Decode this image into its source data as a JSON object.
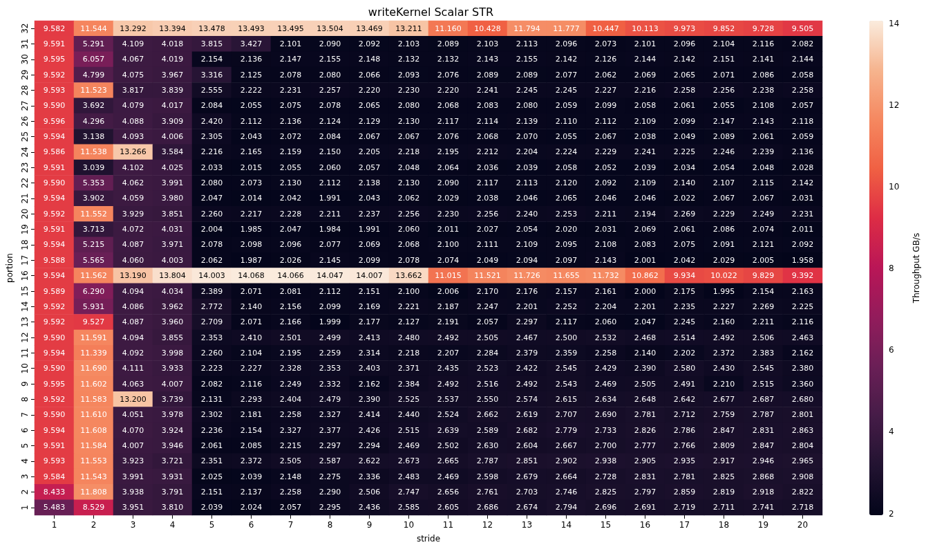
{
  "chart_data": {
    "type": "heatmap",
    "title": "writeKernel Scalar STR",
    "xlabel": "stride",
    "ylabel": "portion",
    "clabel": "Throughput GB/s",
    "categories": [
      "1",
      "2",
      "3",
      "4",
      "5",
      "6",
      "7",
      "8",
      "9",
      "10",
      "11",
      "12",
      "13",
      "14",
      "15",
      "16",
      "17",
      "18",
      "19",
      "20"
    ],
    "y_categories": [
      "32",
      "31",
      "30",
      "29",
      "28",
      "27",
      "26",
      "25",
      "24",
      "23",
      "22",
      "21",
      "20",
      "19",
      "18",
      "17",
      "16",
      "15",
      "14",
      "13",
      "12",
      "11",
      "10",
      "9",
      "8",
      "7",
      "6",
      "5",
      "4",
      "3",
      "2",
      "1"
    ],
    "cells": [
      [
        9.582,
        11.544,
        13.292,
        13.394,
        13.478,
        13.493,
        13.495,
        13.504,
        13.469,
        13.211,
        11.16,
        10.428,
        11.794,
        11.777,
        10.447,
        10.113,
        9.973,
        9.852,
        9.728,
        9.505
      ],
      [
        9.591,
        5.291,
        4.109,
        4.018,
        3.815,
        3.427,
        2.101,
        2.09,
        2.092,
        2.103,
        2.089,
        2.103,
        2.113,
        2.096,
        2.073,
        2.101,
        2.096,
        2.104,
        2.116,
        2.082
      ],
      [
        9.595,
        6.057,
        4.067,
        4.019,
        2.154,
        2.136,
        2.147,
        2.155,
        2.148,
        2.132,
        2.132,
        2.143,
        2.155,
        2.142,
        2.126,
        2.144,
        2.142,
        2.151,
        2.141,
        2.144
      ],
      [
        9.592,
        4.799,
        4.075,
        3.967,
        3.316,
        2.125,
        2.078,
        2.08,
        2.066,
        2.093,
        2.076,
        2.089,
        2.089,
        2.077,
        2.062,
        2.069,
        2.065,
        2.071,
        2.086,
        2.058
      ],
      [
        9.593,
        11.523,
        3.817,
        3.839,
        2.555,
        2.222,
        2.231,
        2.257,
        2.22,
        2.23,
        2.22,
        2.241,
        2.245,
        2.245,
        2.227,
        2.216,
        2.258,
        2.256,
        2.238,
        2.258
      ],
      [
        9.59,
        3.692,
        4.079,
        4.017,
        2.084,
        2.055,
        2.075,
        2.078,
        2.065,
        2.08,
        2.068,
        2.083,
        2.08,
        2.059,
        2.099,
        2.058,
        2.061,
        2.055,
        2.108,
        2.057
      ],
      [
        9.596,
        4.296,
        4.088,
        3.909,
        2.42,
        2.112,
        2.136,
        2.124,
        2.129,
        2.13,
        2.117,
        2.114,
        2.139,
        2.11,
        2.112,
        2.109,
        2.099,
        2.147,
        2.143,
        2.118
      ],
      [
        9.594,
        3.138,
        4.093,
        4.006,
        2.305,
        2.043,
        2.072,
        2.084,
        2.067,
        2.067,
        2.076,
        2.068,
        2.07,
        2.055,
        2.067,
        2.038,
        2.049,
        2.089,
        2.061,
        2.059
      ],
      [
        9.586,
        11.538,
        13.266,
        3.584,
        2.216,
        2.165,
        2.159,
        2.15,
        2.205,
        2.218,
        2.195,
        2.212,
        2.204,
        2.224,
        2.229,
        2.241,
        2.225,
        2.246,
        2.239,
        2.136
      ],
      [
        9.591,
        3.039,
        4.102,
        4.025,
        2.033,
        2.015,
        2.055,
        2.06,
        2.057,
        2.048,
        2.064,
        2.036,
        2.039,
        2.058,
        2.052,
        2.039,
        2.034,
        2.054,
        2.048,
        2.028
      ],
      [
        9.59,
        5.353,
        4.062,
        3.991,
        2.08,
        2.073,
        2.13,
        2.112,
        2.138,
        2.13,
        2.09,
        2.117,
        2.113,
        2.12,
        2.092,
        2.109,
        2.14,
        2.107,
        2.115,
        2.142
      ],
      [
        9.594,
        3.902,
        4.059,
        3.98,
        2.047,
        2.014,
        2.042,
        1.991,
        2.043,
        2.062,
        2.029,
        2.038,
        2.046,
        2.065,
        2.046,
        2.046,
        2.022,
        2.067,
        2.067,
        2.031
      ],
      [
        9.592,
        11.552,
        3.929,
        3.851,
        2.26,
        2.217,
        2.228,
        2.211,
        2.237,
        2.256,
        2.23,
        2.256,
        2.24,
        2.253,
        2.211,
        2.194,
        2.269,
        2.229,
        2.249,
        2.231
      ],
      [
        9.591,
        3.713,
        4.072,
        4.031,
        2.004,
        1.985,
        2.047,
        1.984,
        1.991,
        2.06,
        2.011,
        2.027,
        2.054,
        2.02,
        2.031,
        2.069,
        2.061,
        2.086,
        2.074,
        2.011
      ],
      [
        9.594,
        5.215,
        4.087,
        3.971,
        2.078,
        2.098,
        2.096,
        2.077,
        2.069,
        2.068,
        2.1,
        2.111,
        2.109,
        2.095,
        2.108,
        2.083,
        2.075,
        2.091,
        2.121,
        2.092
      ],
      [
        9.588,
        5.565,
        4.06,
        4.003,
        2.062,
        1.987,
        2.026,
        2.145,
        2.099,
        2.078,
        2.074,
        2.049,
        2.094,
        2.097,
        2.143,
        2.001,
        2.042,
        2.029,
        2.005,
        1.958
      ],
      [
        9.594,
        11.562,
        13.19,
        13.804,
        14.003,
        14.068,
        14.066,
        14.047,
        14.007,
        13.662,
        11.015,
        11.521,
        11.726,
        11.655,
        11.732,
        10.862,
        9.934,
        10.022,
        9.829,
        9.392
      ],
      [
        9.589,
        6.29,
        4.094,
        4.034,
        2.389,
        2.071,
        2.081,
        2.112,
        2.151,
        2.1,
        2.006,
        2.17,
        2.176,
        2.157,
        2.161,
        2.0,
        2.175,
        1.995,
        2.154,
        2.163
      ],
      [
        9.592,
        5.931,
        4.086,
        3.962,
        2.772,
        2.14,
        2.156,
        2.099,
        2.169,
        2.221,
        2.187,
        2.247,
        2.201,
        2.252,
        2.204,
        2.201,
        2.235,
        2.227,
        2.269,
        2.225
      ],
      [
        9.592,
        9.527,
        4.087,
        3.96,
        2.709,
        2.071,
        2.166,
        1.999,
        2.177,
        2.127,
        2.191,
        2.057,
        2.297,
        2.117,
        2.06,
        2.047,
        2.245,
        2.16,
        2.211,
        2.116
      ],
      [
        9.59,
        11.591,
        4.094,
        3.855,
        2.353,
        2.41,
        2.501,
        2.499,
        2.413,
        2.48,
        2.492,
        2.505,
        2.467,
        2.5,
        2.532,
        2.468,
        2.514,
        2.492,
        2.506,
        2.463
      ],
      [
        9.594,
        11.339,
        4.092,
        3.998,
        2.26,
        2.104,
        2.195,
        2.259,
        2.314,
        2.218,
        2.207,
        2.284,
        2.379,
        2.359,
        2.258,
        2.14,
        2.202,
        2.372,
        2.383,
        2.162
      ],
      [
        9.59,
        11.69,
        4.111,
        3.933,
        2.223,
        2.227,
        2.328,
        2.353,
        2.403,
        2.371,
        2.435,
        2.523,
        2.422,
        2.545,
        2.429,
        2.39,
        2.58,
        2.43,
        2.545,
        2.38
      ],
      [
        9.595,
        11.602,
        4.063,
        4.007,
        2.082,
        2.116,
        2.249,
        2.332,
        2.162,
        2.384,
        2.492,
        2.516,
        2.492,
        2.543,
        2.469,
        2.505,
        2.491,
        2.21,
        2.515,
        2.36
      ],
      [
        9.592,
        11.583,
        13.2,
        3.739,
        2.131,
        2.293,
        2.404,
        2.479,
        2.39,
        2.525,
        2.537,
        2.55,
        2.574,
        2.615,
        2.634,
        2.648,
        2.642,
        2.677,
        2.687,
        2.68
      ],
      [
        9.59,
        11.61,
        4.051,
        3.978,
        2.302,
        2.181,
        2.258,
        2.327,
        2.414,
        2.44,
        2.524,
        2.662,
        2.619,
        2.707,
        2.69,
        2.781,
        2.712,
        2.759,
        2.787,
        2.801
      ],
      [
        9.594,
        11.608,
        4.07,
        3.924,
        2.236,
        2.154,
        2.327,
        2.377,
        2.426,
        2.515,
        2.639,
        2.589,
        2.682,
        2.779,
        2.733,
        2.826,
        2.786,
        2.847,
        2.831,
        2.863
      ],
      [
        9.591,
        11.584,
        4.007,
        3.946,
        2.061,
        2.085,
        2.215,
        2.297,
        2.294,
        2.469,
        2.502,
        2.63,
        2.604,
        2.667,
        2.7,
        2.777,
        2.766,
        2.809,
        2.847,
        2.804
      ],
      [
        9.593,
        11.553,
        3.923,
        3.721,
        2.351,
        2.372,
        2.505,
        2.587,
        2.622,
        2.673,
        2.665,
        2.787,
        2.851,
        2.902,
        2.938,
        2.905,
        2.935,
        2.917,
        2.946,
        2.965
      ],
      [
        9.584,
        11.543,
        3.991,
        3.931,
        2.025,
        2.039,
        2.148,
        2.275,
        2.336,
        2.483,
        2.469,
        2.598,
        2.679,
        2.664,
        2.728,
        2.831,
        2.781,
        2.825,
        2.868,
        2.908
      ],
      [
        8.433,
        11.808,
        3.938,
        3.791,
        2.151,
        2.137,
        2.258,
        2.29,
        2.506,
        2.747,
        2.656,
        2.761,
        2.703,
        2.746,
        2.825,
        2.797,
        2.859,
        2.819,
        2.918,
        2.822
      ],
      [
        5.483,
        8.529,
        3.951,
        3.81,
        2.039,
        2.024,
        2.057,
        2.295,
        2.436,
        2.585,
        2.605,
        2.686,
        2.674,
        2.794,
        2.696,
        2.691,
        2.719,
        2.711,
        2.741,
        2.718
      ]
    ],
    "cell_labels": [
      [
        "9.582",
        "11.544",
        "13.292",
        "13.394",
        "13.478",
        "13.493",
        "13.495",
        "13.504",
        "13.469",
        "13.211",
        "11.160",
        "10.428",
        "11.794",
        "11.777",
        "10.447",
        "10.113",
        "9.973",
        "9.852",
        "9.728",
        "9.505"
      ],
      [
        "9.591",
        "5.291",
        "4.109",
        "4.018",
        "3.815",
        "3.427",
        "2.101",
        "2.090",
        "2.092",
        "2.103",
        "2.089",
        "2.103",
        "2.113",
        "2.096",
        "2.073",
        "2.101",
        "2.096",
        "2.104",
        "2.116",
        "2.082"
      ],
      [
        "9.595",
        "6.057",
        "4.067",
        "4.019",
        "2.154",
        "2.136",
        "2.147",
        "2.155",
        "2.148",
        "2.132",
        "2.132",
        "2.143",
        "2.155",
        "2.142",
        "2.126",
        "2.144",
        "2.142",
        "2.151",
        "2.141",
        "2.144"
      ],
      [
        "9.592",
        "4.799",
        "4.075",
        "3.967",
        "3.316",
        "2.125",
        "2.078",
        "2.080",
        "2.066",
        "2.093",
        "2.076",
        "2.089",
        "2.089",
        "2.077",
        "2.062",
        "2.069",
        "2.065",
        "2.071",
        "2.086",
        "2.058"
      ],
      [
        "9.593",
        "11.523",
        "3.817",
        "3.839",
        "2.555",
        "2.222",
        "2.231",
        "2.257",
        "2.220",
        "2.230",
        "2.220",
        "2.241",
        "2.245",
        "2.245",
        "2.227",
        "2.216",
        "2.258",
        "2.256",
        "2.238",
        "2.258"
      ],
      [
        "9.590",
        "3.692",
        "4.079",
        "4.017",
        "2.084",
        "2.055",
        "2.075",
        "2.078",
        "2.065",
        "2.080",
        "2.068",
        "2.083",
        "2.080",
        "2.059",
        "2.099",
        "2.058",
        "2.061",
        "2.055",
        "2.108",
        "2.057"
      ],
      [
        "9.596",
        "4.296",
        "4.088",
        "3.909",
        "2.420",
        "2.112",
        "2.136",
        "2.124",
        "2.129",
        "2.130",
        "2.117",
        "2.114",
        "2.139",
        "2.110",
        "2.112",
        "2.109",
        "2.099",
        "2.147",
        "2.143",
        "2.118"
      ],
      [
        "9.594",
        "3.138",
        "4.093",
        "4.006",
        "2.305",
        "2.043",
        "2.072",
        "2.084",
        "2.067",
        "2.067",
        "2.076",
        "2.068",
        "2.070",
        "2.055",
        "2.067",
        "2.038",
        "2.049",
        "2.089",
        "2.061",
        "2.059"
      ],
      [
        "9.586",
        "11.538",
        "13.266",
        "3.584",
        "2.216",
        "2.165",
        "2.159",
        "2.150",
        "2.205",
        "2.218",
        "2.195",
        "2.212",
        "2.204",
        "2.224",
        "2.229",
        "2.241",
        "2.225",
        "2.246",
        "2.239",
        "2.136"
      ],
      [
        "9.591",
        "3.039",
        "4.102",
        "4.025",
        "2.033",
        "2.015",
        "2.055",
        "2.060",
        "2.057",
        "2.048",
        "2.064",
        "2.036",
        "2.039",
        "2.058",
        "2.052",
        "2.039",
        "2.034",
        "2.054",
        "2.048",
        "2.028"
      ],
      [
        "9.590",
        "5.353",
        "4.062",
        "3.991",
        "2.080",
        "2.073",
        "2.130",
        "2.112",
        "2.138",
        "2.130",
        "2.090",
        "2.117",
        "2.113",
        "2.120",
        "2.092",
        "2.109",
        "2.140",
        "2.107",
        "2.115",
        "2.142"
      ],
      [
        "9.594",
        "3.902",
        "4.059",
        "3.980",
        "2.047",
        "2.014",
        "2.042",
        "1.991",
        "2.043",
        "2.062",
        "2.029",
        "2.038",
        "2.046",
        "2.065",
        "2.046",
        "2.046",
        "2.022",
        "2.067",
        "2.067",
        "2.031"
      ],
      [
        "9.592",
        "11.552",
        "3.929",
        "3.851",
        "2.260",
        "2.217",
        "2.228",
        "2.211",
        "2.237",
        "2.256",
        "2.230",
        "2.256",
        "2.240",
        "2.253",
        "2.211",
        "2.194",
        "2.269",
        "2.229",
        "2.249",
        "2.231"
      ],
      [
        "9.591",
        "3.713",
        "4.072",
        "4.031",
        "2.004",
        "1.985",
        "2.047",
        "1.984",
        "1.991",
        "2.060",
        "2.011",
        "2.027",
        "2.054",
        "2.020",
        "2.031",
        "2.069",
        "2.061",
        "2.086",
        "2.074",
        "2.011"
      ],
      [
        "9.594",
        "5.215",
        "4.087",
        "3.971",
        "2.078",
        "2.098",
        "2.096",
        "2.077",
        "2.069",
        "2.068",
        "2.100",
        "2.111",
        "2.109",
        "2.095",
        "2.108",
        "2.083",
        "2.075",
        "2.091",
        "2.121",
        "2.092"
      ],
      [
        "9.588",
        "5.565",
        "4.060",
        "4.003",
        "2.062",
        "1.987",
        "2.026",
        "2.145",
        "2.099",
        "2.078",
        "2.074",
        "2.049",
        "2.094",
        "2.097",
        "2.143",
        "2.001",
        "2.042",
        "2.029",
        "2.005",
        "1.958"
      ],
      [
        "9.594",
        "11.562",
        "13.190",
        "13.804",
        "14.003",
        "14.068",
        "14.066",
        "14.047",
        "14.007",
        "13.662",
        "11.015",
        "11.521",
        "11.726",
        "11.655",
        "11.732",
        "10.862",
        "9.934",
        "10.022",
        "9.829",
        "9.392"
      ],
      [
        "9.589",
        "6.290",
        "4.094",
        "4.034",
        "2.389",
        "2.071",
        "2.081",
        "2.112",
        "2.151",
        "2.100",
        "2.006",
        "2.170",
        "2.176",
        "2.157",
        "2.161",
        "2.000",
        "2.175",
        "1.995",
        "2.154",
        "2.163"
      ],
      [
        "9.592",
        "5.931",
        "4.086",
        "3.962",
        "2.772",
        "2.140",
        "2.156",
        "2.099",
        "2.169",
        "2.221",
        "2.187",
        "2.247",
        "2.201",
        "2.252",
        "2.204",
        "2.201",
        "2.235",
        "2.227",
        "2.269",
        "2.225"
      ],
      [
        "9.592",
        "9.527",
        "4.087",
        "3.960",
        "2.709",
        "2.071",
        "2.166",
        "1.999",
        "2.177",
        "2.127",
        "2.191",
        "2.057",
        "2.297",
        "2.117",
        "2.060",
        "2.047",
        "2.245",
        "2.160",
        "2.211",
        "2.116"
      ],
      [
        "9.590",
        "11.591",
        "4.094",
        "3.855",
        "2.353",
        "2.410",
        "2.501",
        "2.499",
        "2.413",
        "2.480",
        "2.492",
        "2.505",
        "2.467",
        "2.500",
        "2.532",
        "2.468",
        "2.514",
        "2.492",
        "2.506",
        "2.463"
      ],
      [
        "9.594",
        "11.339",
        "4.092",
        "3.998",
        "2.260",
        "2.104",
        "2.195",
        "2.259",
        "2.314",
        "2.218",
        "2.207",
        "2.284",
        "2.379",
        "2.359",
        "2.258",
        "2.140",
        "2.202",
        "2.372",
        "2.383",
        "2.162"
      ],
      [
        "9.590",
        "11.690",
        "4.111",
        "3.933",
        "2.223",
        "2.227",
        "2.328",
        "2.353",
        "2.403",
        "2.371",
        "2.435",
        "2.523",
        "2.422",
        "2.545",
        "2.429",
        "2.390",
        "2.580",
        "2.430",
        "2.545",
        "2.380"
      ],
      [
        "9.595",
        "11.602",
        "4.063",
        "4.007",
        "2.082",
        "2.116",
        "2.249",
        "2.332",
        "2.162",
        "2.384",
        "2.492",
        "2.516",
        "2.492",
        "2.543",
        "2.469",
        "2.505",
        "2.491",
        "2.210",
        "2.515",
        "2.360"
      ],
      [
        "9.592",
        "11.583",
        "13.200",
        "3.739",
        "2.131",
        "2.293",
        "2.404",
        "2.479",
        "2.390",
        "2.525",
        "2.537",
        "2.550",
        "2.574",
        "2.615",
        "2.634",
        "2.648",
        "2.642",
        "2.677",
        "2.687",
        "2.680"
      ],
      [
        "9.590",
        "11.610",
        "4.051",
        "3.978",
        "2.302",
        "2.181",
        "2.258",
        "2.327",
        "2.414",
        "2.440",
        "2.524",
        "2.662",
        "2.619",
        "2.707",
        "2.690",
        "2.781",
        "2.712",
        "2.759",
        "2.787",
        "2.801"
      ],
      [
        "9.594",
        "11.608",
        "4.070",
        "3.924",
        "2.236",
        "2.154",
        "2.327",
        "2.377",
        "2.426",
        "2.515",
        "2.639",
        "2.589",
        "2.682",
        "2.779",
        "2.733",
        "2.826",
        "2.786",
        "2.847",
        "2.831",
        "2.863"
      ],
      [
        "9.591",
        "11.584",
        "4.007",
        "3.946",
        "2.061",
        "2.085",
        "2.215",
        "2.297",
        "2.294",
        "2.469",
        "2.502",
        "2.630",
        "2.604",
        "2.667",
        "2.700",
        "2.777",
        "2.766",
        "2.809",
        "2.847",
        "2.804"
      ],
      [
        "9.593",
        "11.553",
        "3.923",
        "3.721",
        "2.351",
        "2.372",
        "2.505",
        "2.587",
        "2.622",
        "2.673",
        "2.665",
        "2.787",
        "2.851",
        "2.902",
        "2.938",
        "2.905",
        "2.935",
        "2.917",
        "2.946",
        "2.965"
      ],
      [
        "9.584",
        "11.543",
        "3.991",
        "3.931",
        "2.025",
        "2.039",
        "2.148",
        "2.275",
        "2.336",
        "2.483",
        "2.469",
        "2.598",
        "2.679",
        "2.664",
        "2.728",
        "2.831",
        "2.781",
        "2.825",
        "2.868",
        "2.908"
      ],
      [
        "8.433",
        "11.808",
        "3.938",
        "3.791",
        "2.151",
        "2.137",
        "2.258",
        "2.290",
        "2.506",
        "2.747",
        "2.656",
        "2.761",
        "2.703",
        "2.746",
        "2.825",
        "2.797",
        "2.859",
        "2.819",
        "2.918",
        "2.822"
      ],
      [
        "5.483",
        "8.529",
        "3.951",
        "3.810",
        "2.039",
        "2.024",
        "2.057",
        "2.295",
        "2.436",
        "2.585",
        "2.605",
        "2.686",
        "2.674",
        "2.794",
        "2.696",
        "2.691",
        "2.719",
        "2.711",
        "2.741",
        "2.718"
      ]
    ],
    "clim": [
      1.958,
      14.068
    ],
    "cticks": [
      2,
      4,
      6,
      8,
      10,
      12,
      14
    ]
  }
}
